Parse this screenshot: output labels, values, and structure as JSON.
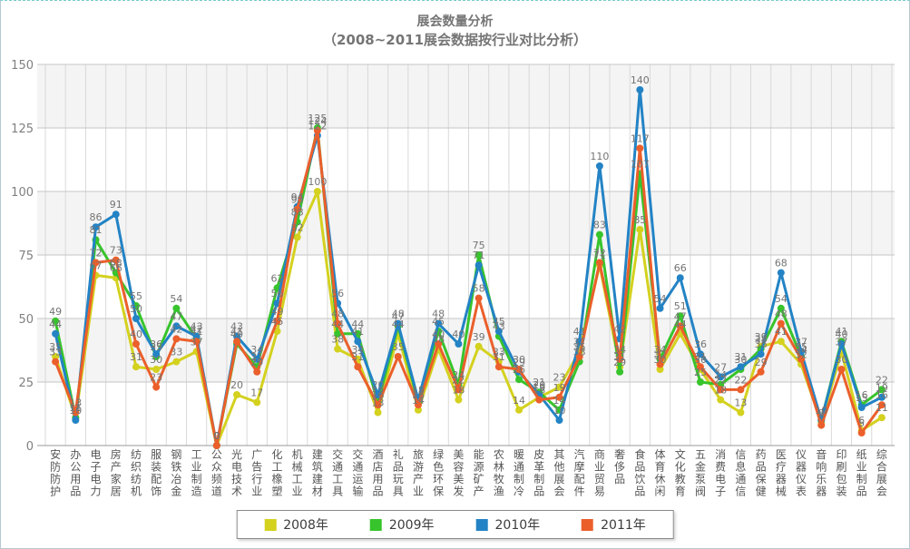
{
  "header": {
    "title": "展会数量分析",
    "subtitle": "（2008~2011展会数据按行业对比分析）"
  },
  "chart_data": {
    "type": "line",
    "title": "展会数量分析",
    "subtitle": "（2008~2011展会数据按行业对比分析）",
    "ylim": [
      0,
      150
    ],
    "yticks": [
      0,
      25,
      50,
      75,
      100,
      125,
      150
    ],
    "grid": true,
    "alt_bands": [
      [
        25,
        50
      ],
      [
        75,
        100
      ],
      [
        125,
        150
      ]
    ],
    "legend_position": "bottom",
    "categories": [
      "安防防护",
      "办公用品",
      "电子电力",
      "房产家居",
      "纺织纺机",
      "服装配饰",
      "钢铁冶金",
      "工业制造",
      "公众频道",
      "光电技术",
      "广告行业",
      "化工橡塑",
      "机械工业",
      "建筑建材",
      "交通工具",
      "交通运输",
      "酒店用品",
      "礼品玩具",
      "旅游产业",
      "绿色环保",
      "美容美发",
      "能源矿产",
      "农林牧渔",
      "暖通制冷",
      "皮革制品",
      "其他展会",
      "汽摩配件",
      "商业贸易",
      "奢侈品",
      "食品饮品",
      "体育休闲",
      "文化教育",
      "五金泵阀",
      "消费电子",
      "信息通信",
      "药品保健",
      "医疗器械",
      "仪器仪表",
      "音响乐器",
      "印刷包装",
      "纸业制品",
      "综合展会"
    ],
    "series": [
      {
        "name": "2008年",
        "color": "#d4d11f",
        "values": [
          35,
          11,
          67,
          66,
          31,
          30,
          33,
          37,
          0,
          20,
          17,
          45,
          82,
          100,
          38,
          34,
          13,
          44,
          14,
          38,
          18,
          39,
          33,
          14,
          19,
          23,
          37,
          71,
          31,
          85,
          30,
          44,
          30,
          18,
          13,
          39,
          41,
          32,
          9,
          37,
          6,
          11
        ]
      },
      {
        "name": "2009年",
        "color": "#37c42c",
        "values": [
          49,
          11,
          81,
          68,
          55,
          35,
          54,
          42,
          0,
          40,
          31,
          62,
          88,
          125,
          44,
          44,
          17,
          47,
          17,
          45,
          24,
          75,
          43,
          26,
          21,
          14,
          33,
          83,
          29,
          107,
          34,
          51,
          25,
          24,
          30,
          38,
          54,
          35,
          10,
          41,
          16,
          22
        ]
      },
      {
        "name": "2010年",
        "color": "#2383c5",
        "values": [
          44,
          10,
          86,
          91,
          50,
          36,
          47,
          43,
          0,
          43,
          34,
          56,
          94,
          122,
          56,
          41,
          20,
          48,
          18,
          48,
          40,
          71,
          45,
          29,
          20,
          10,
          41,
          110,
          42,
          140,
          54,
          66,
          36,
          27,
          31,
          36,
          68,
          37,
          10,
          40,
          15,
          19
        ]
      },
      {
        "name": "2011年",
        "color": "#eb5f2b",
        "values": [
          33,
          13,
          72,
          73,
          40,
          23,
          42,
          41,
          0,
          41,
          29,
          49,
          93,
          124,
          48,
          31,
          16,
          35,
          16,
          40,
          22,
          58,
          31,
          30,
          18,
          19,
          35,
          72,
          34,
          117,
          32,
          47,
          31,
          22,
          22,
          29,
          48,
          34,
          8,
          30,
          5,
          16
        ]
      }
    ]
  }
}
